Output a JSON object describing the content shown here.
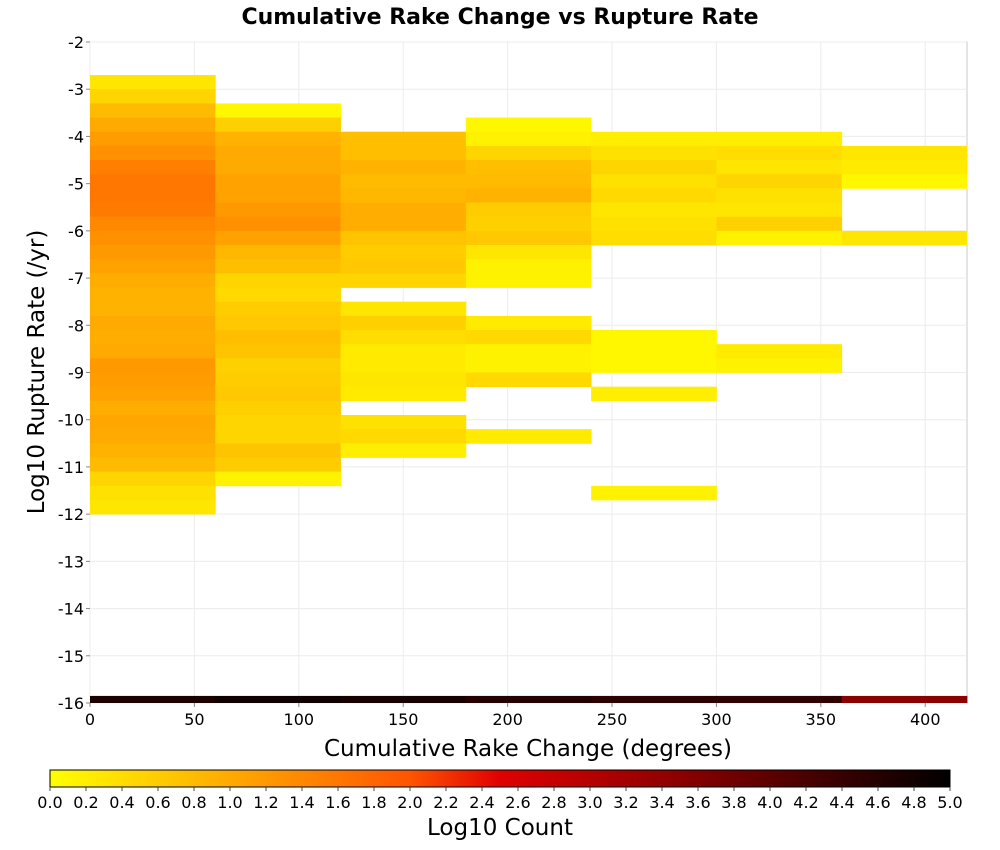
{
  "chart_data": {
    "type": "heatmap",
    "title": "Cumulative Rake Change vs Rupture Rate",
    "xlabel": "Cumulative Rake Change (degrees)",
    "ylabel": "Log10 Rupture Rate (/yr)",
    "xlim": [
      0,
      420
    ],
    "ylim": [
      -16,
      -2
    ],
    "xticks": [
      "0",
      "50",
      "100",
      "150",
      "200",
      "250",
      "300",
      "350",
      "400"
    ],
    "yticks": [
      "-2",
      "-3",
      "-4",
      "-5",
      "-6",
      "-7",
      "-8",
      "-9",
      "-10",
      "-11",
      "-12",
      "-13",
      "-14",
      "-15",
      "-16"
    ],
    "grid": true,
    "colorbar": {
      "label": "Log10 Count",
      "min": 0.0,
      "max": 5.0,
      "ticks": [
        "0.0",
        "0.2",
        "0.4",
        "0.6",
        "0.8",
        "1.0",
        "1.2",
        "1.4",
        "1.6",
        "1.8",
        "2.0",
        "2.2",
        "2.4",
        "2.6",
        "2.8",
        "3.0",
        "3.2",
        "3.4",
        "3.6",
        "3.8",
        "4.0",
        "4.2",
        "4.4",
        "4.6",
        "4.8",
        "5.0"
      ],
      "colors": [
        "#ffff00",
        "#ffaa00",
        "#ff5500",
        "#e00000",
        "#8b0000",
        "#000000"
      ],
      "stops": [
        0.0,
        0.2,
        0.4,
        0.5,
        0.7,
        1.0
      ]
    },
    "x_bin_width": 60,
    "y_bin_height": 0.3,
    "columns": [
      {
        "x": 0,
        "cells": [
          [
            -3.0,
            0.3
          ],
          [
            -3.3,
            0.5
          ],
          [
            -3.6,
            0.8
          ],
          [
            -3.9,
            1.0
          ],
          [
            -4.2,
            1.15
          ],
          [
            -4.5,
            1.3
          ],
          [
            -4.8,
            1.5
          ],
          [
            -5.1,
            1.6
          ],
          [
            -5.4,
            1.6
          ],
          [
            -5.7,
            1.55
          ],
          [
            -6.0,
            1.4
          ],
          [
            -6.3,
            1.3
          ],
          [
            -6.6,
            1.2
          ],
          [
            -6.9,
            1.1
          ],
          [
            -7.2,
            0.95
          ],
          [
            -7.5,
            0.9
          ],
          [
            -7.8,
            0.9
          ],
          [
            -8.1,
            1.0
          ],
          [
            -8.4,
            0.95
          ],
          [
            -8.7,
            1.0
          ],
          [
            -9.0,
            1.2
          ],
          [
            -9.3,
            1.15
          ],
          [
            -9.6,
            1.1
          ],
          [
            -9.9,
            0.95
          ],
          [
            -10.2,
            1.05
          ],
          [
            -10.5,
            1.0
          ],
          [
            -10.8,
            0.9
          ],
          [
            -11.1,
            0.8
          ],
          [
            -11.4,
            0.5
          ],
          [
            -11.7,
            0.35
          ],
          [
            -12.0,
            0.3
          ]
        ]
      },
      {
        "x": 60,
        "cells": [
          [
            -3.6,
            0.1
          ],
          [
            -3.9,
            0.55
          ],
          [
            -4.2,
            0.9
          ],
          [
            -4.5,
            1.0
          ],
          [
            -4.8,
            1.0
          ],
          [
            -5.1,
            1.1
          ],
          [
            -5.4,
            1.1
          ],
          [
            -5.7,
            1.2
          ],
          [
            -6.0,
            1.3
          ],
          [
            -6.3,
            1.1
          ],
          [
            -6.6,
            0.85
          ],
          [
            -6.9,
            0.75
          ],
          [
            -7.2,
            0.5
          ],
          [
            -7.5,
            0.45
          ],
          [
            -7.8,
            0.6
          ],
          [
            -8.1,
            0.65
          ],
          [
            -8.4,
            0.75
          ],
          [
            -8.7,
            0.7
          ],
          [
            -9.0,
            0.55
          ],
          [
            -9.3,
            0.6
          ],
          [
            -9.6,
            0.65
          ],
          [
            -9.9,
            0.55
          ],
          [
            -10.2,
            0.5
          ],
          [
            -10.5,
            0.5
          ],
          [
            -10.8,
            0.7
          ],
          [
            -11.1,
            0.6
          ],
          [
            -11.4,
            0.15
          ]
        ]
      },
      {
        "x": 120,
        "cells": [
          [
            -4.2,
            0.75
          ],
          [
            -4.5,
            0.75
          ],
          [
            -4.8,
            0.9
          ],
          [
            -5.1,
            0.8
          ],
          [
            -5.4,
            0.85
          ],
          [
            -5.7,
            0.95
          ],
          [
            -6.0,
            0.95
          ],
          [
            -6.3,
            0.7
          ],
          [
            -6.6,
            0.6
          ],
          [
            -6.9,
            0.65
          ],
          [
            -7.2,
            0.5
          ],
          [
            -7.8,
            0.3
          ],
          [
            -8.1,
            0.55
          ],
          [
            -8.4,
            0.4
          ],
          [
            -8.7,
            0.25
          ],
          [
            -9.0,
            0.25
          ],
          [
            -9.3,
            0.3
          ],
          [
            -9.6,
            0.25
          ],
          [
            -10.2,
            0.35
          ],
          [
            -10.5,
            0.45
          ],
          [
            -10.8,
            0.2
          ]
        ]
      },
      {
        "x": 180,
        "cells": [
          [
            -3.9,
            0.1
          ],
          [
            -4.2,
            0.15
          ],
          [
            -4.5,
            0.5
          ],
          [
            -4.8,
            0.75
          ],
          [
            -5.1,
            0.8
          ],
          [
            -5.4,
            0.9
          ],
          [
            -5.7,
            0.6
          ],
          [
            -6.0,
            0.55
          ],
          [
            -6.3,
            0.65
          ],
          [
            -6.6,
            0.3
          ],
          [
            -6.9,
            0.15
          ],
          [
            -7.2,
            0.15
          ],
          [
            -8.1,
            0.25
          ],
          [
            -8.4,
            0.45
          ],
          [
            -8.7,
            0.15
          ],
          [
            -9.0,
            0.15
          ],
          [
            -9.3,
            0.45
          ],
          [
            -10.5,
            0.25
          ]
        ]
      },
      {
        "x": 240,
        "cells": [
          [
            -4.2,
            0.2
          ],
          [
            -4.5,
            0.35
          ],
          [
            -4.8,
            0.5
          ],
          [
            -5.1,
            0.35
          ],
          [
            -5.4,
            0.45
          ],
          [
            -5.7,
            0.3
          ],
          [
            -6.0,
            0.35
          ],
          [
            -6.3,
            0.4
          ],
          [
            -8.4,
            0.1
          ],
          [
            -8.7,
            0.1
          ],
          [
            -9.0,
            0.1
          ],
          [
            -9.6,
            0.2
          ],
          [
            -11.7,
            0.15
          ]
        ]
      },
      {
        "x": 300,
        "cells": [
          [
            -4.2,
            0.2
          ],
          [
            -4.5,
            0.4
          ],
          [
            -4.8,
            0.3
          ],
          [
            -5.1,
            0.5
          ],
          [
            -5.4,
            0.35
          ],
          [
            -5.7,
            0.3
          ],
          [
            -6.0,
            0.55
          ],
          [
            -6.3,
            0.15
          ],
          [
            -8.7,
            0.25
          ],
          [
            -9.0,
            0.15
          ]
        ]
      },
      {
        "x": 360,
        "cells": [
          [
            -4.5,
            0.3
          ],
          [
            -4.8,
            0.25
          ],
          [
            -5.1,
            0.1
          ],
          [
            -6.3,
            0.3
          ]
        ]
      }
    ],
    "bottom_band": {
      "y": -16.0,
      "height": 0.15,
      "cells": [
        [
          0,
          4.7
        ],
        [
          60,
          4.85
        ],
        [
          120,
          4.75
        ],
        [
          180,
          4.6
        ],
        [
          240,
          4.55
        ],
        [
          300,
          4.5
        ],
        [
          360,
          3.5
        ]
      ]
    }
  }
}
